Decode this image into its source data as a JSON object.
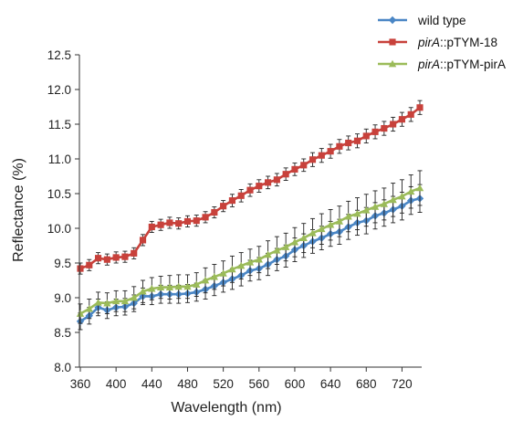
{
  "chart_data": {
    "type": "line",
    "title": "",
    "xlabel": "Wavelength (nm)",
    "ylabel": "Reflectance (%)",
    "xlim": [
      360,
      740
    ],
    "ylim": [
      8.0,
      12.5
    ],
    "xticks": [
      360,
      400,
      440,
      480,
      520,
      560,
      600,
      640,
      680,
      720
    ],
    "yticks": [
      8.0,
      8.5,
      9.0,
      9.5,
      10.0,
      10.5,
      11.0,
      11.5,
      12.0,
      12.5
    ],
    "xtick_labels": [
      "360",
      "400",
      "440",
      "480",
      "520",
      "560",
      "600",
      "640",
      "680",
      "720"
    ],
    "ytick_labels": [
      "8.0",
      "8.5",
      "9.0",
      "9.5",
      "10.0",
      "10.5",
      "11.0",
      "11.5",
      "12.0",
      "12.5"
    ],
    "grid": false,
    "legend_position": "top-right",
    "x": [
      360,
      370,
      380,
      390,
      400,
      410,
      420,
      430,
      440,
      450,
      460,
      470,
      480,
      490,
      500,
      510,
      520,
      530,
      540,
      550,
      560,
      570,
      580,
      590,
      600,
      610,
      620,
      630,
      640,
      650,
      660,
      670,
      680,
      690,
      700,
      710,
      720,
      730,
      740
    ],
    "series": [
      {
        "name_italic": "",
        "name_rest": "wild type",
        "color": "#4a86c5",
        "marker": "diamond",
        "values": [
          8.66,
          8.74,
          8.86,
          8.82,
          8.86,
          8.87,
          8.92,
          9.02,
          9.02,
          9.05,
          9.05,
          9.05,
          9.06,
          9.08,
          9.12,
          9.17,
          9.22,
          9.27,
          9.32,
          9.39,
          9.42,
          9.48,
          9.55,
          9.6,
          9.69,
          9.75,
          9.81,
          9.86,
          9.92,
          9.95,
          10.02,
          10.08,
          10.11,
          10.18,
          10.22,
          10.27,
          10.32,
          10.4,
          10.43
        ],
        "errors": [
          0.12,
          0.12,
          0.12,
          0.12,
          0.12,
          0.12,
          0.12,
          0.12,
          0.12,
          0.13,
          0.13,
          0.13,
          0.13,
          0.13,
          0.14,
          0.14,
          0.14,
          0.15,
          0.15,
          0.15,
          0.16,
          0.16,
          0.16,
          0.16,
          0.17,
          0.17,
          0.17,
          0.17,
          0.18,
          0.18,
          0.18,
          0.18,
          0.19,
          0.19,
          0.19,
          0.19,
          0.2,
          0.2,
          0.2
        ]
      },
      {
        "name_italic": "pirA",
        "name_rest": "::pTYM-18",
        "color": "#c8413b",
        "marker": "square",
        "values": [
          9.42,
          9.47,
          9.57,
          9.55,
          9.58,
          9.59,
          9.64,
          9.83,
          10.02,
          10.05,
          10.08,
          10.07,
          10.1,
          10.11,
          10.16,
          10.23,
          10.32,
          10.4,
          10.47,
          10.55,
          10.61,
          10.66,
          10.7,
          10.78,
          10.85,
          10.91,
          10.99,
          11.05,
          11.11,
          11.18,
          11.23,
          11.26,
          11.33,
          11.39,
          11.44,
          11.5,
          11.57,
          11.64,
          11.74
        ],
        "errors": [
          0.08,
          0.08,
          0.08,
          0.08,
          0.08,
          0.08,
          0.08,
          0.08,
          0.08,
          0.08,
          0.08,
          0.08,
          0.08,
          0.08,
          0.08,
          0.08,
          0.08,
          0.09,
          0.09,
          0.09,
          0.09,
          0.09,
          0.09,
          0.09,
          0.09,
          0.09,
          0.1,
          0.1,
          0.1,
          0.1,
          0.1,
          0.1,
          0.1,
          0.1,
          0.1,
          0.1,
          0.1,
          0.1,
          0.1
        ]
      },
      {
        "name_italic": "pirA",
        "name_rest": "::pTYM-pirA",
        "color": "#9bbb59",
        "marker": "triangle",
        "values": [
          8.77,
          8.84,
          8.93,
          8.92,
          8.95,
          8.95,
          9.0,
          9.09,
          9.13,
          9.15,
          9.15,
          9.16,
          9.16,
          9.19,
          9.25,
          9.3,
          9.35,
          9.41,
          9.46,
          9.51,
          9.55,
          9.62,
          9.68,
          9.73,
          9.8,
          9.86,
          9.93,
          9.99,
          10.05,
          10.1,
          10.17,
          10.21,
          10.26,
          10.31,
          10.35,
          10.41,
          10.46,
          10.53,
          10.58
        ],
        "errors": [
          0.14,
          0.14,
          0.15,
          0.15,
          0.15,
          0.15,
          0.16,
          0.16,
          0.16,
          0.16,
          0.17,
          0.17,
          0.17,
          0.17,
          0.18,
          0.18,
          0.18,
          0.19,
          0.19,
          0.19,
          0.19,
          0.2,
          0.2,
          0.2,
          0.21,
          0.21,
          0.21,
          0.22,
          0.22,
          0.22,
          0.22,
          0.23,
          0.23,
          0.23,
          0.23,
          0.24,
          0.24,
          0.24,
          0.25
        ]
      }
    ]
  }
}
